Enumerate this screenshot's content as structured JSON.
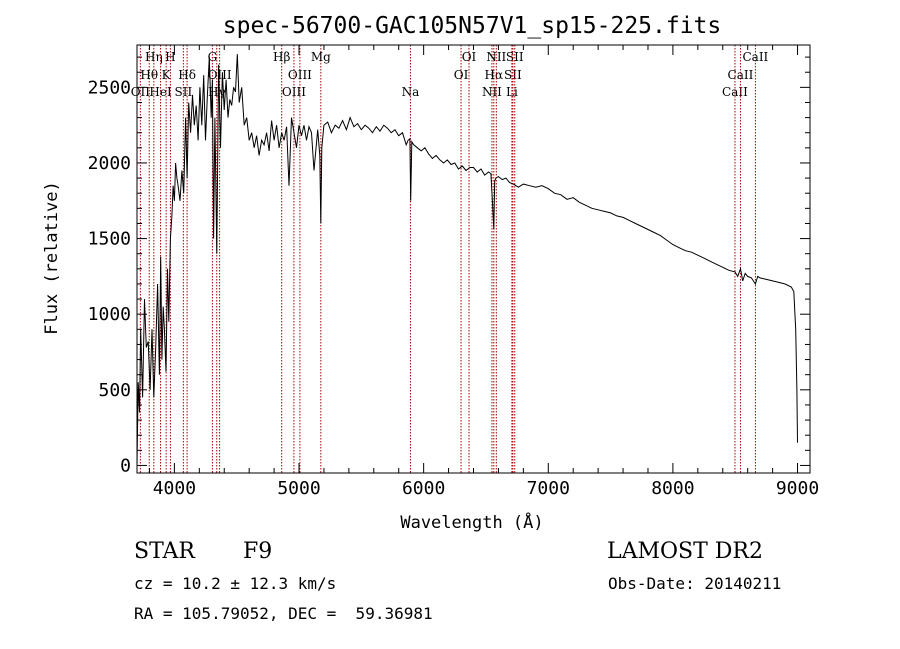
{
  "chart_data": {
    "type": "line",
    "title": "spec-56700-GAC105N57V1_sp15-225.fits",
    "xlabel": "Wavelength (Å)",
    "ylabel": "Flux (relative)",
    "xlim": [
      3700,
      9100
    ],
    "ylim": [
      -50,
      2780
    ],
    "x_ticks": [
      4000,
      5000,
      6000,
      7000,
      8000,
      9000
    ],
    "y_ticks": [
      0,
      500,
      1000,
      1500,
      2000,
      2500
    ],
    "grid": false,
    "series": [
      {
        "x": [
          3700,
          3710,
          3720,
          3730,
          3745,
          3760,
          3775,
          3790,
          3805,
          3820,
          3835,
          3850,
          3865,
          3880,
          3890,
          3900,
          3910,
          3920,
          3933,
          3945,
          3955,
          3968,
          3980,
          3990,
          4000,
          4010,
          4020,
          4030,
          4045,
          4060,
          4075,
          4090,
          4102,
          4115,
          4130,
          4145,
          4160,
          4175,
          4190,
          4205,
          4220,
          4235,
          4250,
          4265,
          4280,
          4295,
          4305,
          4315,
          4325,
          4340,
          4355,
          4370,
          4385,
          4400,
          4415,
          4430,
          4445,
          4460,
          4475,
          4490,
          4505,
          4520,
          4540,
          4560,
          4580,
          4600,
          4620,
          4640,
          4660,
          4680,
          4700,
          4720,
          4740,
          4760,
          4780,
          4800,
          4820,
          4840,
          4861,
          4880,
          4900,
          4920,
          4940,
          4960,
          4980,
          5000,
          5020,
          5040,
          5060,
          5080,
          5100,
          5120,
          5150,
          5167,
          5175,
          5183,
          5200,
          5230,
          5260,
          5290,
          5320,
          5350,
          5380,
          5410,
          5440,
          5470,
          5500,
          5530,
          5560,
          5590,
          5620,
          5650,
          5680,
          5710,
          5740,
          5770,
          5800,
          5830,
          5860,
          5875,
          5890,
          5896,
          5905,
          5920,
          5950,
          5980,
          6010,
          6040,
          6070,
          6100,
          6130,
          6160,
          6190,
          6220,
          6250,
          6280,
          6310,
          6340,
          6370,
          6400,
          6430,
          6460,
          6490,
          6520,
          6540,
          6555,
          6563,
          6570,
          6580,
          6600,
          6630,
          6660,
          6690,
          6720,
          6760,
          6800,
          6850,
          6900,
          6950,
          7000,
          7050,
          7100,
          7150,
          7200,
          7250,
          7300,
          7350,
          7400,
          7450,
          7500,
          7550,
          7600,
          7650,
          7700,
          7750,
          7800,
          7850,
          7900,
          7950,
          8000,
          8050,
          8100,
          8150,
          8200,
          8250,
          8300,
          8350,
          8400,
          8450,
          8498,
          8520,
          8542,
          8560,
          8580,
          8600,
          8630,
          8662,
          8680,
          8700,
          8750,
          8800,
          8850,
          8900,
          8950,
          8970,
          8985,
          8995,
          9000
        ],
        "y": [
          0,
          550,
          350,
          900,
          450,
          1100,
          780,
          820,
          500,
          900,
          450,
          780,
          1200,
          600,
          1380,
          700,
          1050,
          900,
          620,
          1300,
          950,
          1500,
          1650,
          1850,
          1750,
          2000,
          1900,
          1850,
          1750,
          1950,
          1800,
          2300,
          1900,
          2400,
          2200,
          2450,
          2250,
          2380,
          2150,
          2500,
          2250,
          2580,
          2150,
          2450,
          2700,
          2300,
          2550,
          1500,
          2300,
          1400,
          2650,
          2100,
          2600,
          2350,
          2550,
          2300,
          2420,
          2380,
          2500,
          2470,
          2720,
          2400,
          2500,
          2250,
          2300,
          2150,
          2200,
          2100,
          2180,
          2050,
          2150,
          2120,
          2200,
          2080,
          2280,
          2150,
          2250,
          2100,
          2200,
          2150,
          2240,
          1850,
          2300,
          2200,
          2100,
          2250,
          2180,
          2250,
          2150,
          2240,
          2200,
          1950,
          2220,
          2050,
          1600,
          2100,
          2250,
          2270,
          2200,
          2250,
          2230,
          2280,
          2220,
          2300,
          2240,
          2260,
          2220,
          2250,
          2230,
          2200,
          2240,
          2210,
          2250,
          2230,
          2200,
          2220,
          2180,
          2200,
          2120,
          2150,
          2160,
          1750,
          2140,
          2120,
          2100,
          2080,
          2100,
          2060,
          2030,
          2050,
          2020,
          2000,
          2020,
          1990,
          2000,
          1960,
          1980,
          1950,
          1970,
          1970,
          1940,
          1960,
          1920,
          1940,
          1930,
          1700,
          1560,
          1880,
          1900,
          1910,
          1890,
          1900,
          1870,
          1860,
          1840,
          1860,
          1850,
          1840,
          1850,
          1830,
          1800,
          1790,
          1760,
          1770,
          1740,
          1720,
          1700,
          1690,
          1680,
          1670,
          1650,
          1640,
          1620,
          1600,
          1580,
          1560,
          1540,
          1520,
          1490,
          1460,
          1440,
          1420,
          1410,
          1390,
          1370,
          1350,
          1330,
          1310,
          1290,
          1280,
          1250,
          1300,
          1220,
          1270,
          1250,
          1240,
          1200,
          1250,
          1240,
          1230,
          1220,
          1210,
          1200,
          1180,
          1150,
          900,
          500,
          150
        ]
      }
    ],
    "line_markers": [
      {
        "x": 3727,
        "label": "OII",
        "row": 3
      },
      {
        "x": 3798,
        "label": "Hθ",
        "row": 2
      },
      {
        "x": 3835,
        "label": "Hη",
        "row": 1
      },
      {
        "x": 3889,
        "label": "HeI",
        "row": 3
      },
      {
        "x": 3934,
        "label": "K",
        "row": 2
      },
      {
        "x": 3968,
        "label": "H",
        "row": 1
      },
      {
        "x": 4072,
        "label": "SII",
        "row": 3
      },
      {
        "x": 4102,
        "label": "Hδ",
        "row": 2
      },
      {
        "x": 4305,
        "label": "G",
        "row": 1
      },
      {
        "x": 4340,
        "label": "Hγ",
        "row": 3
      },
      {
        "x": 4363,
        "label": "OIII",
        "row": 2
      },
      {
        "x": 4861,
        "label": "Hβ",
        "row": 1
      },
      {
        "x": 4959,
        "label": "OIII",
        "row": 3
      },
      {
        "x": 5007,
        "label": "OIII",
        "row": 2
      },
      {
        "x": 5175,
        "label": "Mg",
        "row": 1
      },
      {
        "x": 5894,
        "label": "Na",
        "row": 3
      },
      {
        "x": 6300,
        "label": "OI",
        "row": 2
      },
      {
        "x": 6364,
        "label": "OI",
        "row": 1
      },
      {
        "x": 6548,
        "label": "NII",
        "row": 3
      },
      {
        "x": 6563,
        "label": "Hα",
        "row": 2
      },
      {
        "x": 6583,
        "label": "NII",
        "row": 1
      },
      {
        "x": 6716,
        "label": "SII",
        "row": 2
      },
      {
        "x": 6731,
        "label": "SII",
        "row": 1
      },
      {
        "x": 6708,
        "label": "Li",
        "row": 3
      },
      {
        "x": 8498,
        "label": "CaII",
        "row": 3
      },
      {
        "x": 8542,
        "label": "CaII",
        "row": 2
      },
      {
        "x": 8662,
        "label": "CaII",
        "row": 1
      }
    ],
    "marker_color": "#aa0000"
  },
  "info": {
    "class": "STAR",
    "subclass": "F9",
    "survey": "LAMOST DR2",
    "cz": "cz = 10.2 ± 12.3 km/s",
    "obsdate": "Obs-Date: 20140211",
    "radec": "RA = 105.79052, DEC =  59.36981"
  }
}
